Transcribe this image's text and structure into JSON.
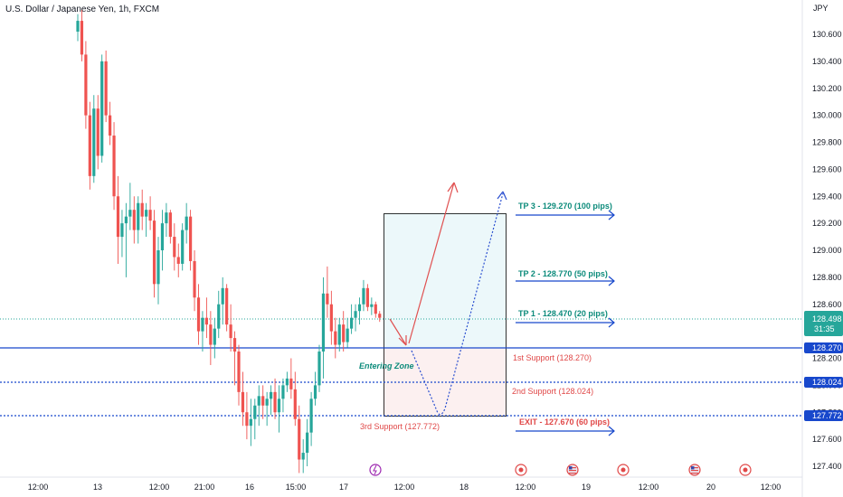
{
  "chart_data": {
    "type": "candlestick",
    "title": "U.S. Dollar / Japanese Yen, 1h, FXCM",
    "currency": "JPY",
    "y_ticks": [
      "130.600",
      "130.400",
      "130.200",
      "130.000",
      "129.800",
      "129.600",
      "129.400",
      "129.200",
      "129.000",
      "128.800",
      "128.600",
      "128.400",
      "128.200",
      "128.000",
      "127.800",
      "127.600",
      "127.400"
    ],
    "x_ticks": [
      "12:00",
      "13",
      "12:00",
      "21:00",
      "16",
      "15:00",
      "17",
      "12:00",
      "18",
      "12:00",
      "19",
      "12:00",
      "20",
      "12:00"
    ],
    "ylim": [
      127.3,
      130.7
    ],
    "current_price": {
      "value": "128.498",
      "countdown": "31:35"
    },
    "levels": {
      "first_support": {
        "value": "128.270",
        "label": "1st Support (128.270)"
      },
      "second_support": {
        "value": "128.024",
        "label": "2nd Support (128.024)"
      },
      "third_support": {
        "value": "127.772",
        "label": "3rd Support (127.772)"
      }
    },
    "targets": [
      {
        "label": "TP 3 - 129.270 (100 pips)",
        "price": 129.27
      },
      {
        "label": "TP 2 - 128.770 (50 pips)",
        "price": 128.77
      },
      {
        "label": "TP 1 - 128.470 (20 pips)",
        "price": 128.47
      },
      {
        "label": "EXIT - 127.670 (60 pips)",
        "price": 127.67
      }
    ],
    "entering_zone_label": "Entering Zone",
    "candles": [
      [
        130.62,
        130.75,
        130.55,
        130.7
      ],
      [
        130.7,
        130.78,
        130.4,
        130.45
      ],
      [
        130.45,
        130.55,
        129.9,
        130.0
      ],
      [
        130.0,
        130.1,
        129.45,
        129.55
      ],
      [
        129.55,
        130.15,
        129.5,
        130.05
      ],
      [
        130.05,
        130.15,
        129.6,
        129.7
      ],
      [
        129.7,
        130.45,
        129.65,
        130.4
      ],
      [
        130.4,
        130.48,
        129.95,
        130.0
      ],
      [
        130.0,
        130.1,
        129.78,
        129.85
      ],
      [
        129.85,
        129.95,
        129.3,
        129.4
      ],
      [
        129.4,
        129.55,
        128.9,
        129.1
      ],
      [
        129.1,
        129.3,
        128.95,
        129.2
      ],
      [
        129.2,
        129.35,
        128.8,
        129.25
      ],
      [
        129.25,
        129.5,
        129.15,
        129.3
      ],
      [
        129.3,
        129.4,
        129.05,
        129.15
      ],
      [
        129.15,
        129.4,
        129.05,
        129.35
      ],
      [
        129.35,
        129.45,
        129.15,
        129.25
      ],
      [
        129.25,
        129.35,
        129.1,
        129.3
      ],
      [
        129.3,
        129.4,
        129.15,
        129.22
      ],
      [
        129.22,
        129.3,
        128.65,
        128.75
      ],
      [
        128.75,
        129.1,
        128.6,
        129.0
      ],
      [
        129.0,
        129.3,
        128.85,
        129.2
      ],
      [
        129.2,
        129.35,
        129.1,
        129.28
      ],
      [
        129.28,
        129.3,
        129.05,
        129.1
      ],
      [
        129.1,
        129.2,
        128.85,
        128.95
      ],
      [
        128.95,
        129.05,
        128.8,
        128.9
      ],
      [
        128.9,
        129.2,
        128.85,
        129.15
      ],
      [
        129.15,
        129.35,
        129.05,
        129.25
      ],
      [
        129.25,
        129.3,
        128.85,
        128.92
      ],
      [
        128.92,
        129.0,
        128.55,
        128.65
      ],
      [
        128.65,
        128.75,
        128.3,
        128.4
      ],
      [
        128.4,
        128.55,
        128.25,
        128.5
      ],
      [
        128.5,
        128.65,
        128.35,
        128.45
      ],
      [
        128.45,
        128.55,
        128.15,
        128.3
      ],
      [
        128.3,
        128.5,
        128.2,
        128.42
      ],
      [
        128.42,
        128.7,
        128.35,
        128.6
      ],
      [
        128.6,
        128.8,
        128.45,
        128.72
      ],
      [
        128.72,
        128.75,
        128.4,
        128.45
      ],
      [
        128.45,
        128.6,
        128.25,
        128.35
      ],
      [
        128.35,
        128.4,
        128.0,
        128.25
      ],
      [
        128.25,
        128.3,
        127.85,
        127.95
      ],
      [
        127.95,
        128.1,
        127.7,
        127.8
      ],
      [
        127.8,
        127.95,
        127.6,
        127.7
      ],
      [
        127.7,
        127.9,
        127.55,
        127.75
      ],
      [
        127.75,
        127.9,
        127.6,
        127.85
      ],
      [
        127.85,
        128.0,
        127.7,
        127.92
      ],
      [
        127.92,
        128.0,
        127.75,
        127.85
      ],
      [
        127.85,
        127.95,
        127.7,
        127.9
      ],
      [
        127.9,
        128.0,
        127.78,
        127.95
      ],
      [
        127.95,
        128.05,
        127.75,
        127.8
      ],
      [
        127.8,
        128.0,
        127.65,
        127.9
      ],
      [
        127.9,
        128.05,
        127.8,
        128.0
      ],
      [
        128.0,
        128.1,
        127.95,
        128.05
      ],
      [
        128.05,
        128.2,
        127.9,
        127.97
      ],
      [
        127.97,
        128.1,
        127.7,
        127.75
      ],
      [
        127.75,
        127.85,
        127.35,
        127.45
      ],
      [
        127.45,
        127.6,
        127.35,
        127.5
      ],
      [
        127.5,
        127.75,
        127.4,
        127.65
      ],
      [
        127.65,
        127.95,
        127.55,
        127.9
      ],
      [
        127.9,
        128.1,
        127.85,
        128.0
      ],
      [
        128.0,
        128.3,
        127.95,
        128.25
      ],
      [
        128.25,
        128.8,
        128.05,
        128.68
      ],
      [
        128.68,
        128.88,
        128.5,
        128.6
      ],
      [
        128.6,
        128.7,
        128.3,
        128.4
      ],
      [
        128.4,
        128.5,
        128.2,
        128.3
      ],
      [
        128.3,
        128.5,
        128.25,
        128.45
      ],
      [
        128.45,
        128.55,
        128.25,
        128.32
      ],
      [
        128.32,
        128.5,
        128.28,
        128.42
      ],
      [
        128.42,
        128.6,
        128.38,
        128.5
      ],
      [
        128.5,
        128.6,
        128.4,
        128.55
      ],
      [
        128.55,
        128.65,
        128.45,
        128.6
      ],
      [
        128.6,
        128.78,
        128.55,
        128.72
      ],
      [
        128.72,
        128.75,
        128.55,
        128.58
      ],
      [
        128.58,
        128.65,
        128.52,
        128.6
      ],
      [
        128.6,
        128.62,
        128.5,
        128.53
      ],
      [
        128.53,
        128.55,
        128.47,
        128.5
      ]
    ]
  },
  "colors": {
    "up": "#26a69a",
    "down": "#ef5350",
    "blue": "#1848cc",
    "teal": "#0c8b7b",
    "red_text": "#e04848"
  },
  "event_icons": [
    "lightning-icon",
    "calendar-event-icon",
    "us-flag-icon",
    "calendar-event-icon",
    "us-flag-icon",
    "calendar-event-icon"
  ]
}
